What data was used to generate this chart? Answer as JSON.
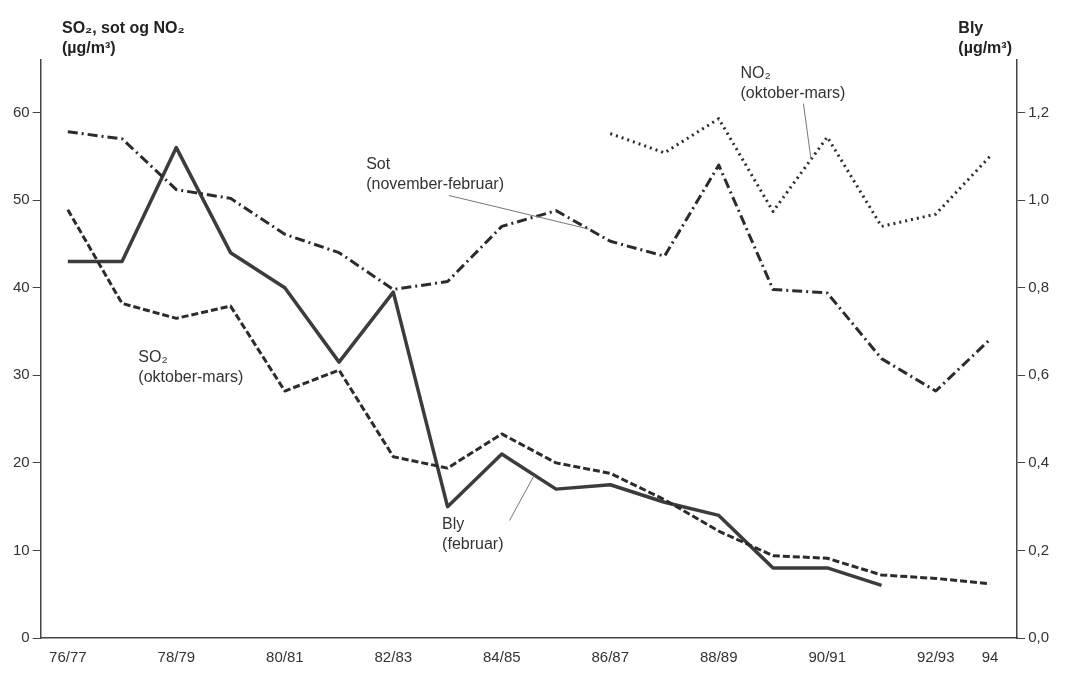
{
  "chart_data": {
    "type": "line",
    "ylabel": "SO₂, sot og NO₂ (µg/m³)",
    "y2label": "Bly (µg/m³)",
    "categories": [
      "76/77",
      null,
      "78/79",
      null,
      "80/81",
      null,
      "82/83",
      null,
      "84/85",
      null,
      "86/87",
      null,
      "88/89",
      null,
      "90/91",
      null,
      "92/93",
      "94"
    ],
    "ylim": [
      0,
      66
    ],
    "yticks": [
      0,
      10,
      20,
      30,
      40,
      50,
      60
    ],
    "y2lim": [
      0,
      1.32
    ],
    "y2ticks": [
      {
        "value": 0,
        "label": "0,0"
      },
      {
        "value": 0.2,
        "label": "0,2"
      },
      {
        "value": 0.4,
        "label": "0,4"
      },
      {
        "value": 0.6,
        "label": "0,6"
      },
      {
        "value": 0.8,
        "label": "0,8"
      },
      {
        "value": 1.0,
        "label": "1,0"
      },
      {
        "value": 1.2,
        "label": "1,2"
      }
    ],
    "grid": false,
    "legend": false,
    "marker": "none",
    "series": [
      {
        "name": "Sot (november-februar)",
        "color": "#2b2b2b",
        "line_style": "dashdot",
        "values": [
          57.8,
          57,
          51.2,
          50.2,
          46.1,
          44,
          39.8,
          40.7,
          47,
          48.8,
          45.3,
          43.6,
          54,
          39.8,
          39.4,
          31.9,
          28.2,
          34.1
        ]
      },
      {
        "name": "SO₂ (oktober-mars)",
        "color": "#2b2b2b",
        "line_style": "dashed",
        "values": [
          48.9,
          38.2,
          36.5,
          37.9,
          28.2,
          30.6,
          20.7,
          19.4,
          23.3,
          20,
          18.8,
          15.8,
          12.2,
          9.4,
          9.1,
          7.2,
          6.8,
          6.2
        ]
      },
      {
        "name": "NO₂ (oktober-mars)",
        "color": "#2b2b2b",
        "line_style": "dotted",
        "values": [
          null,
          null,
          null,
          null,
          null,
          null,
          null,
          null,
          null,
          null,
          57.6,
          55.4,
          59.3,
          48.7,
          57.2,
          47,
          48.4,
          55
        ]
      },
      {
        "name": "Bly (februar)",
        "color": "#3c3c3c",
        "line_style": "solid",
        "axis": "y2",
        "values": [
          0.86,
          0.86,
          1.12,
          0.88,
          0.8,
          0.63,
          0.79,
          0.3,
          0.42,
          0.34,
          0.35,
          0.31,
          0.28,
          0.16,
          0.16,
          0.12,
          null,
          null
        ]
      }
    ]
  }
}
